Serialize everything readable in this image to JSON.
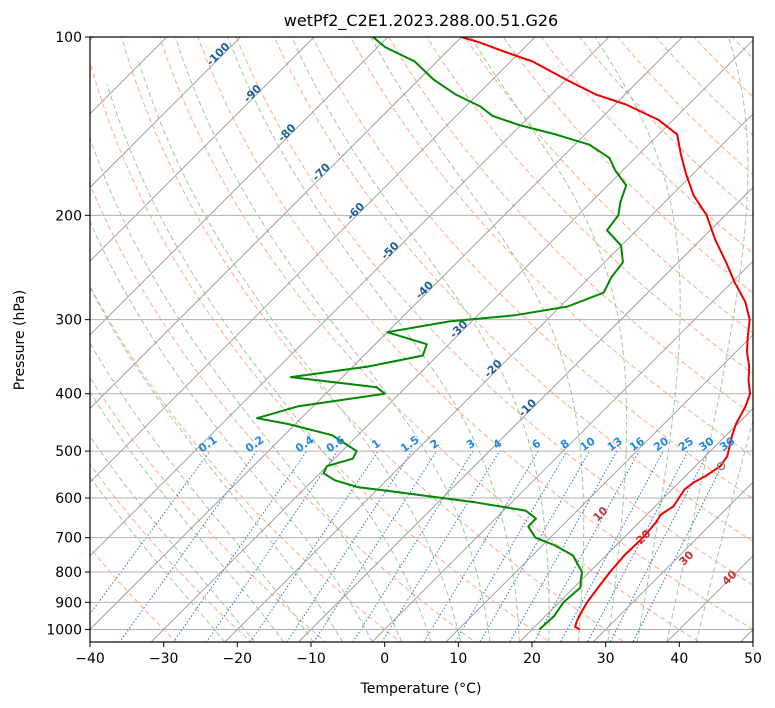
{
  "chart_data": {
    "type": "skew-t",
    "title": "wetPf2_C2E1.2023.288.00.51.G26",
    "xlabel": "Temperature (°C)",
    "ylabel": "Pressure (hPa)",
    "xlim": [
      -40,
      50
    ],
    "ylim": [
      1050,
      100
    ],
    "y_scale": "log",
    "grid": true,
    "x_ticks": [
      -40,
      -30,
      -20,
      -10,
      0,
      10,
      20,
      30,
      40,
      50
    ],
    "x_tick_labels": [
      "−40",
      "−30",
      "−20",
      "−10",
      "0",
      "10",
      "20",
      "30",
      "40",
      "50"
    ],
    "y_ticks": [
      1000,
      900,
      800,
      700,
      600,
      500,
      400,
      300,
      200,
      100
    ],
    "y_tick_labels": [
      "1000",
      "900",
      "800",
      "700",
      "600",
      "500",
      "400",
      "300",
      "200",
      "100"
    ],
    "colors": {
      "temperature": "#ee0000",
      "dewpoint": "#008800",
      "isotherm": "#999999",
      "dry_adiabat": "#ffaa88",
      "moist_adiabat": "#99cc99",
      "mixing_ratio": "#2277cc",
      "isotherm_label": "#1f5f99",
      "mixing_label": "#1e88e5",
      "lcl_marker": "#888888"
    },
    "series": [
      {
        "name": "Temperature",
        "points": [
          [
            26.5,
            1000
          ],
          [
            25.5,
            990
          ],
          [
            25,
            970
          ],
          [
            24.6,
            950
          ],
          [
            23.8,
            900
          ],
          [
            23.3,
            850
          ],
          [
            22.8,
            800
          ],
          [
            22.5,
            750
          ],
          [
            22.6,
            700
          ],
          [
            22.3,
            660
          ],
          [
            21.9,
            640
          ],
          [
            22.5,
            620
          ],
          [
            22.1,
            600
          ],
          [
            21.7,
            580
          ],
          [
            22,
            565
          ],
          [
            22.8,
            550
          ],
          [
            23.4,
            530
          ],
          [
            23,
            510
          ],
          [
            22.2,
            495
          ],
          [
            20.8,
            470
          ],
          [
            19.8,
            450
          ],
          [
            18.7,
            420
          ],
          [
            17.6,
            400
          ],
          [
            15.6,
            380
          ],
          [
            13.8,
            360
          ],
          [
            11.5,
            340
          ],
          [
            9.5,
            320
          ],
          [
            7.5,
            300
          ],
          [
            4.5,
            280
          ],
          [
            0.5,
            260
          ],
          [
            -3.5,
            240
          ],
          [
            -8,
            220
          ],
          [
            -12.5,
            200
          ],
          [
            -17,
            185
          ],
          [
            -21,
            170
          ],
          [
            -24.5,
            157
          ],
          [
            -27.5,
            146
          ],
          [
            -32,
            138
          ],
          [
            -38.5,
            130
          ],
          [
            -44,
            125
          ],
          [
            -50,
            118
          ],
          [
            -57,
            110
          ],
          [
            -62,
            106
          ],
          [
            -67,
            102
          ],
          [
            -70,
            100
          ]
        ]
      },
      {
        "name": "Dewpoint",
        "points": [
          [
            21,
            1000
          ],
          [
            21.2,
            950
          ],
          [
            20.6,
            900
          ],
          [
            20.9,
            850
          ],
          [
            19.7,
            820
          ],
          [
            19,
            800
          ],
          [
            15.5,
            750
          ],
          [
            11.5,
            720
          ],
          [
            8,
            700
          ],
          [
            5.5,
            670
          ],
          [
            5.5,
            650
          ],
          [
            3,
            630
          ],
          [
            -5,
            610
          ],
          [
            -15,
            590
          ],
          [
            -23,
            575
          ],
          [
            -27,
            560
          ],
          [
            -29.5,
            545
          ],
          [
            -30,
            530
          ],
          [
            -27.5,
            515
          ],
          [
            -28,
            500
          ],
          [
            -33.5,
            470
          ],
          [
            -41,
            450
          ],
          [
            -46,
            440
          ],
          [
            -42,
            420
          ],
          [
            -32,
            400
          ],
          [
            -34,
            390
          ],
          [
            -47,
            375
          ],
          [
            -38,
            360
          ],
          [
            -32,
            345
          ],
          [
            -33,
            330
          ],
          [
            -40,
            315
          ],
          [
            -33,
            302
          ],
          [
            -25,
            295
          ],
          [
            -19,
            285
          ],
          [
            -16,
            270
          ],
          [
            -17,
            255
          ],
          [
            -17.5,
            240
          ],
          [
            -20,
            225
          ],
          [
            -24,
            212
          ],
          [
            -24.5,
            200
          ],
          [
            -26,
            190
          ],
          [
            -27.5,
            178
          ],
          [
            -31,
            168
          ],
          [
            -33.5,
            160
          ],
          [
            -38,
            152
          ],
          [
            -44,
            146
          ],
          [
            -50,
            141
          ],
          [
            -55,
            136
          ],
          [
            -58,
            131
          ],
          [
            -63,
            125
          ],
          [
            -68,
            118
          ],
          [
            -73,
            110
          ],
          [
            -79,
            104
          ],
          [
            -82,
            100
          ]
        ]
      }
    ],
    "lcl": {
      "temperature": 23.5,
      "pressure": 530
    },
    "isotherm_labels": [
      "-100",
      "-90",
      "-80",
      "-70",
      "-60",
      "-50",
      "-40",
      "-30",
      "-20",
      "-10"
    ],
    "isotherm_label_values": [
      -100,
      -90,
      -80,
      -70,
      -60,
      -50,
      -40,
      -30,
      -20,
      -10
    ],
    "mixing_ratios": [
      0.1,
      0.2,
      0.4,
      0.6,
      1,
      1.5,
      2,
      3,
      4,
      6,
      8,
      10,
      13,
      16,
      20,
      25,
      30,
      36
    ],
    "mixing_ratio_labels": [
      "0.1",
      "0.2",
      "0.4",
      "0.6",
      "1",
      "1.5",
      "2",
      "3",
      "4",
      "6",
      "8",
      "10",
      "13",
      "16",
      "20",
      "25",
      "30",
      "36"
    ],
    "wetbulb_labels": [
      "10",
      "20",
      "30",
      "40"
    ],
    "wetbulb_values": [
      10,
      20,
      30,
      40
    ]
  }
}
